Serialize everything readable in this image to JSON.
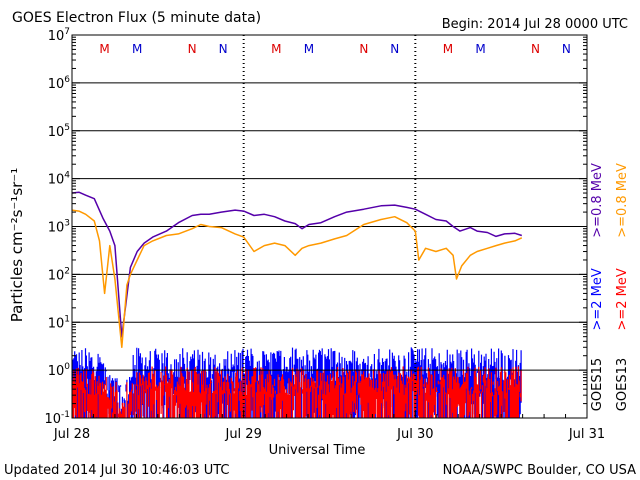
{
  "header": {
    "title": "GOES Electron Flux (5 minute data)",
    "begin": "Begin: 2014 Jul 28 0000 UTC"
  },
  "footer": {
    "updated": "Updated 2014 Jul 30 10:46:03 UTC",
    "credit": "NOAA/SWPC Boulder, CO USA"
  },
  "colors": {
    "goes15_high": "#5500aa",
    "goes13_high": "#ff9900",
    "goes15_low": "#0000ff",
    "goes13_low": "#ff0000",
    "marker_M_red": "#dd0000",
    "marker_M_blue": "#0000cc",
    "axis": "#000000"
  },
  "chart_data": {
    "type": "line",
    "title": "GOES Electron Flux (5 minute data)",
    "xlabel": "Universal Time",
    "ylabel": "Particles cm⁻²s⁻¹sr⁻¹",
    "yscale": "log",
    "ylim": [
      0.1,
      10000000
    ],
    "x_unit": "days since 2014 Jul 28 0000 UTC",
    "xlim": [
      0,
      3
    ],
    "x_ticks": [
      {
        "x": 0,
        "label": "Jul 28"
      },
      {
        "x": 1,
        "label": "Jul 29"
      },
      {
        "x": 2,
        "label": "Jul 30"
      },
      {
        "x": 3,
        "label": "Jul 31"
      }
    ],
    "y_ticks": [
      {
        "base": "10",
        "exp": "-1",
        "value": 0.1
      },
      {
        "base": "10",
        "exp": "0",
        "value": 1
      },
      {
        "base": "10",
        "exp": "1",
        "value": 10
      },
      {
        "base": "10",
        "exp": "2",
        "value": 100
      },
      {
        "base": "10",
        "exp": "3",
        "value": 1000
      },
      {
        "base": "10",
        "exp": "4",
        "value": 10000
      },
      {
        "base": "10",
        "exp": "5",
        "value": 100000
      },
      {
        "base": "10",
        "exp": "6",
        "value": 1000000
      },
      {
        "base": "10",
        "exp": "7",
        "value": 10000000
      }
    ],
    "threshold": {
      "value": 1000,
      "style": "dashed"
    },
    "grid": true,
    "day_boundaries": [
      1,
      2
    ],
    "markers": [
      {
        "x": 0.19,
        "text": "M",
        "color": "#dd0000"
      },
      {
        "x": 0.38,
        "text": "M",
        "color": "#0000cc"
      },
      {
        "x": 0.7,
        "text": "N",
        "color": "#dd0000"
      },
      {
        "x": 0.88,
        "text": "N",
        "color": "#0000cc"
      },
      {
        "x": 1.19,
        "text": "M",
        "color": "#dd0000"
      },
      {
        "x": 1.38,
        "text": "M",
        "color": "#0000cc"
      },
      {
        "x": 1.7,
        "text": "N",
        "color": "#dd0000"
      },
      {
        "x": 1.88,
        "text": "N",
        "color": "#0000cc"
      },
      {
        "x": 2.19,
        "text": "M",
        "color": "#dd0000"
      },
      {
        "x": 2.38,
        "text": "M",
        "color": "#0000cc"
      },
      {
        "x": 2.7,
        "text": "N",
        "color": "#dd0000"
      },
      {
        "x": 2.88,
        "text": "N",
        "color": "#0000cc"
      }
    ],
    "legend": [
      {
        "sat": "GOES15",
        "label": ">=0.8 MeV",
        "color": "#5500aa",
        "series": "goes15_high"
      },
      {
        "sat": "GOES13",
        "label": ">=0.8 MeV",
        "color": "#ff9900",
        "series": "goes13_high"
      },
      {
        "sat": "GOES15",
        "label": ">=2 MeV",
        "color": "#0000ff",
        "series": "goes15_low"
      },
      {
        "sat": "GOES13",
        "label": ">=2 MeV",
        "color": "#ff0000",
        "series": "goes13_low"
      }
    ],
    "series": [
      {
        "name": "GOES15 >=0.8 MeV",
        "color": "#5500aa",
        "x": [
          0,
          0.04,
          0.08,
          0.13,
          0.18,
          0.22,
          0.25,
          0.29,
          0.34,
          0.38,
          0.42,
          0.47,
          0.55,
          0.62,
          0.7,
          0.75,
          0.8,
          0.87,
          0.95,
          1.0,
          1.06,
          1.12,
          1.18,
          1.24,
          1.3,
          1.34,
          1.38,
          1.45,
          1.53,
          1.6,
          1.7,
          1.8,
          1.88,
          1.95,
          2.0,
          2.06,
          2.12,
          2.18,
          2.22,
          2.26,
          2.32,
          2.36,
          2.42,
          2.47,
          2.52,
          2.58,
          2.62
        ],
        "y": [
          5000,
          5200,
          4500,
          3800,
          1500,
          800,
          400,
          5,
          140,
          300,
          450,
          600,
          800,
          1200,
          1700,
          1800,
          1800,
          2000,
          2200,
          2100,
          1700,
          1800,
          1600,
          1300,
          1150,
          900,
          1100,
          1200,
          1600,
          2000,
          2300,
          2700,
          2800,
          2500,
          2300,
          1800,
          1400,
          1300,
          1000,
          800,
          950,
          800,
          750,
          620,
          700,
          720,
          650
        ]
      },
      {
        "name": "GOES13 >=0.8 MeV",
        "color": "#ff9900",
        "x": [
          0,
          0.04,
          0.08,
          0.13,
          0.16,
          0.19,
          0.22,
          0.25,
          0.29,
          0.32,
          0.34,
          0.38,
          0.42,
          0.47,
          0.55,
          0.62,
          0.7,
          0.75,
          0.8,
          0.87,
          0.95,
          1.0,
          1.06,
          1.12,
          1.18,
          1.24,
          1.3,
          1.34,
          1.38,
          1.45,
          1.53,
          1.6,
          1.7,
          1.8,
          1.88,
          1.95,
          2.0,
          2.02,
          2.06,
          2.12,
          2.18,
          2.22,
          2.24,
          2.27,
          2.32,
          2.36,
          2.42,
          2.47,
          2.52,
          2.58,
          2.62
        ],
        "y": [
          2200,
          2100,
          1800,
          1300,
          500,
          40,
          400,
          80,
          3,
          60,
          100,
          200,
          400,
          500,
          650,
          700,
          900,
          1100,
          1000,
          950,
          700,
          600,
          300,
          400,
          450,
          400,
          250,
          350,
          400,
          450,
          550,
          650,
          1100,
          1400,
          1600,
          1200,
          800,
          200,
          350,
          300,
          350,
          250,
          80,
          150,
          250,
          300,
          350,
          400,
          450,
          500,
          580
        ]
      },
      {
        "name": "GOES15 >=2 MeV",
        "color": "#0000ff",
        "style": "noise",
        "x_range": [
          0,
          2.62
        ],
        "level_range": [
          0.6,
          3.0
        ],
        "spike_range": [
          0.1,
          1.0
        ]
      },
      {
        "name": "GOES13 >=2 MeV",
        "color": "#ff0000",
        "style": "noise",
        "x_range": [
          0,
          2.62
        ],
        "level_range": [
          0.3,
          1.2
        ],
        "spike_range": [
          0.1,
          0.6
        ]
      }
    ]
  }
}
